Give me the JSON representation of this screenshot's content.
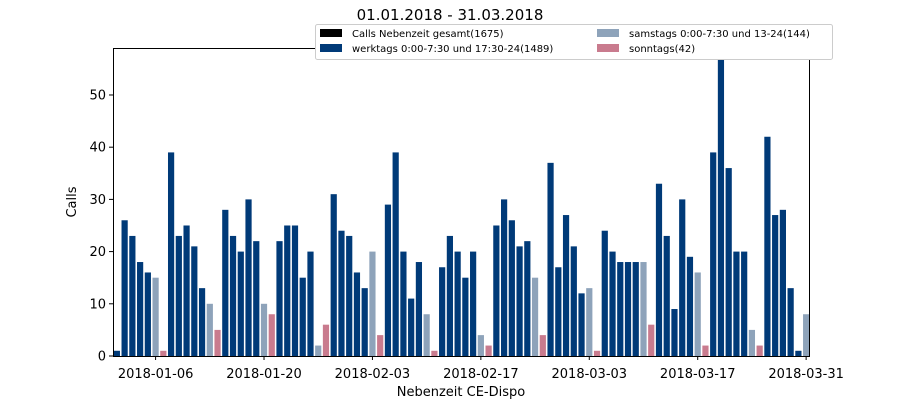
{
  "colors": {
    "werktags": "#003a78",
    "samstags": "#8ea3ba",
    "sonntags": "#c97b8e",
    "gesamt": "#000000"
  },
  "chart_data": {
    "type": "bar",
    "title": "01.01.2018 - 31.03.2018",
    "xlabel": "Nebenzeit CE-Dispo",
    "ylabel": "Calls",
    "ylim": [
      0,
      59
    ],
    "yticks": [
      0,
      10,
      20,
      30,
      40,
      50
    ],
    "grid": false,
    "legend_position": "top-right",
    "x_start": "2018-01-01",
    "x_end": "2018-03-31",
    "xticks": [
      "2018-01-06",
      "2018-01-20",
      "2018-02-03",
      "2018-02-17",
      "2018-03-03",
      "2018-03-17",
      "2018-03-31"
    ],
    "legend": [
      {
        "label": "Calls Nebenzeit gesamt(1675)",
        "color": "#000000"
      },
      {
        "label": "werktags 0:00-7:30 und 17:30-24(1489)",
        "color": "#003a78"
      },
      {
        "label": "samstags 0:00-7:30 und 13-24(144)",
        "color": "#8ea3ba"
      },
      {
        "label": "sonntags(42)",
        "color": "#c97b8e"
      }
    ],
    "series": [
      {
        "name": "werktags 0:00-7:30 und 17:30-24(1489)",
        "key": "werktags",
        "points": [
          [
            "2018-01-01",
            1
          ],
          [
            "2018-01-02",
            26
          ],
          [
            "2018-01-03",
            23
          ],
          [
            "2018-01-04",
            18
          ],
          [
            "2018-01-05",
            16
          ],
          [
            "2018-01-08",
            39
          ],
          [
            "2018-01-09",
            23
          ],
          [
            "2018-01-10",
            25
          ],
          [
            "2018-01-11",
            21
          ],
          [
            "2018-01-12",
            13
          ],
          [
            "2018-01-15",
            28
          ],
          [
            "2018-01-16",
            23
          ],
          [
            "2018-01-17",
            20
          ],
          [
            "2018-01-18",
            30
          ],
          [
            "2018-01-19",
            22
          ],
          [
            "2018-01-22",
            22
          ],
          [
            "2018-01-23",
            25
          ],
          [
            "2018-01-24",
            25
          ],
          [
            "2018-01-25",
            15
          ],
          [
            "2018-01-26",
            20
          ],
          [
            "2018-01-29",
            31
          ],
          [
            "2018-01-30",
            24
          ],
          [
            "2018-01-31",
            23
          ],
          [
            "2018-02-01",
            16
          ],
          [
            "2018-02-02",
            13
          ],
          [
            "2018-02-05",
            29
          ],
          [
            "2018-02-06",
            39
          ],
          [
            "2018-02-07",
            20
          ],
          [
            "2018-02-08",
            11
          ],
          [
            "2018-02-09",
            18
          ],
          [
            "2018-02-12",
            17
          ],
          [
            "2018-02-13",
            23
          ],
          [
            "2018-02-14",
            20
          ],
          [
            "2018-02-15",
            15
          ],
          [
            "2018-02-16",
            20
          ],
          [
            "2018-02-19",
            25
          ],
          [
            "2018-02-20",
            30
          ],
          [
            "2018-02-21",
            26
          ],
          [
            "2018-02-22",
            21
          ],
          [
            "2018-02-23",
            22
          ],
          [
            "2018-02-26",
            37
          ],
          [
            "2018-02-27",
            17
          ],
          [
            "2018-02-28",
            27
          ],
          [
            "2018-03-01",
            21
          ],
          [
            "2018-03-02",
            12
          ],
          [
            "2018-03-05",
            24
          ],
          [
            "2018-03-06",
            20
          ],
          [
            "2018-03-07",
            18
          ],
          [
            "2018-03-08",
            18
          ],
          [
            "2018-03-09",
            18
          ],
          [
            "2018-03-12",
            33
          ],
          [
            "2018-03-13",
            23
          ],
          [
            "2018-03-14",
            9
          ],
          [
            "2018-03-15",
            30
          ],
          [
            "2018-03-16",
            19
          ],
          [
            "2018-03-19",
            39
          ],
          [
            "2018-03-20",
            60
          ],
          [
            "2018-03-21",
            36
          ],
          [
            "2018-03-22",
            20
          ],
          [
            "2018-03-23",
            20
          ],
          [
            "2018-03-26",
            42
          ],
          [
            "2018-03-27",
            27
          ],
          [
            "2018-03-28",
            28
          ],
          [
            "2018-03-29",
            13
          ],
          [
            "2018-03-30",
            1
          ]
        ]
      },
      {
        "name": "samstags 0:00-7:30 und 13-24(144)",
        "key": "samstags",
        "points": [
          [
            "2018-01-06",
            15
          ],
          [
            "2018-01-13",
            10
          ],
          [
            "2018-01-20",
            10
          ],
          [
            "2018-01-27",
            2
          ],
          [
            "2018-02-03",
            20
          ],
          [
            "2018-02-10",
            8
          ],
          [
            "2018-02-17",
            4
          ],
          [
            "2018-02-24",
            15
          ],
          [
            "2018-03-03",
            13
          ],
          [
            "2018-03-10",
            18
          ],
          [
            "2018-03-17",
            16
          ],
          [
            "2018-03-24",
            5
          ],
          [
            "2018-03-31",
            8
          ]
        ]
      },
      {
        "name": "sonntags(42)",
        "key": "sonntags",
        "points": [
          [
            "2018-01-07",
            1
          ],
          [
            "2018-01-14",
            5
          ],
          [
            "2018-01-21",
            8
          ],
          [
            "2018-01-28",
            6
          ],
          [
            "2018-02-04",
            4
          ],
          [
            "2018-02-11",
            1
          ],
          [
            "2018-02-18",
            2
          ],
          [
            "2018-02-25",
            4
          ],
          [
            "2018-03-04",
            1
          ],
          [
            "2018-03-11",
            6
          ],
          [
            "2018-03-18",
            2
          ],
          [
            "2018-03-25",
            2
          ]
        ]
      }
    ]
  }
}
